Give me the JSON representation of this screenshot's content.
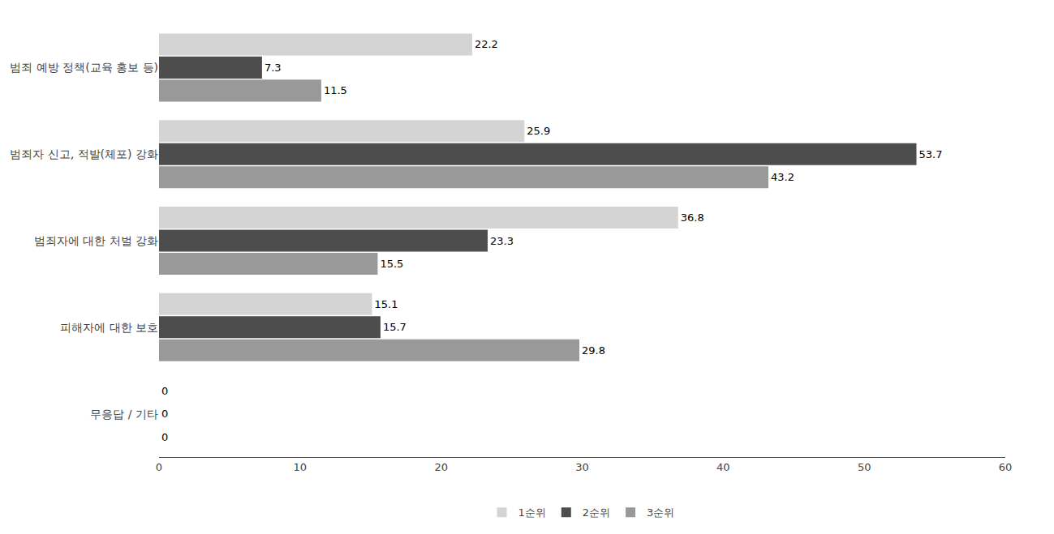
{
  "chart_data": {
    "type": "bar",
    "orientation": "horizontal",
    "categories": [
      "범죄 예방 정책(교육 홍보 등)",
      "범죄자 신고, 적발(체포) 강화",
      "범죄자에 대한 처벌 강화",
      "피해자에 대한 보호",
      "무응답 / 기타"
    ],
    "series": [
      {
        "name": "1순위",
        "color": "#d4d4d4",
        "values": [
          22.2,
          25.9,
          36.8,
          15.1,
          0
        ]
      },
      {
        "name": "2순위",
        "color": "#4d4d4d",
        "values": [
          7.3,
          53.7,
          23.3,
          15.7,
          0
        ]
      },
      {
        "name": "3순위",
        "color": "#999999",
        "values": [
          11.5,
          43.2,
          15.5,
          29.8,
          0
        ]
      }
    ],
    "xlim": [
      0,
      60
    ],
    "xticks": [
      0,
      10,
      20,
      30,
      40,
      50,
      60
    ],
    "data_labels": true,
    "grid": false,
    "legend": "bottom"
  }
}
